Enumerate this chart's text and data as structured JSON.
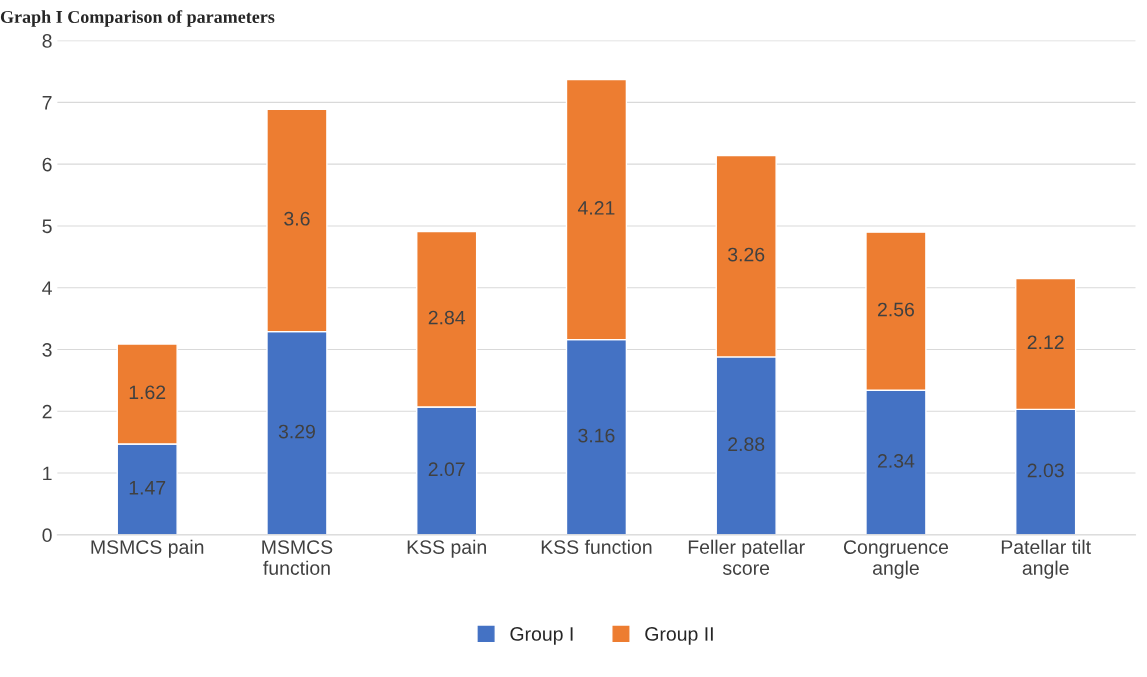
{
  "chart_data": {
    "type": "bar",
    "title": "Graph I Comparison of parameters",
    "categories": [
      "MSMCS pain",
      "MSMCS\nfunction",
      "KSS pain",
      "KSS function",
      "Feller patellar\nscore",
      "Congruence\nangle",
      "Patellar tilt\nangle"
    ],
    "stacked": true,
    "series": [
      {
        "name": "Group I",
        "color": "#4472c4",
        "values": [
          1.47,
          3.29,
          2.07,
          3.16,
          2.88,
          2.34,
          2.03
        ]
      },
      {
        "name": "Group II",
        "color": "#ed7d31",
        "values": [
          1.62,
          3.6,
          2.84,
          4.21,
          3.26,
          2.56,
          2.12
        ]
      }
    ],
    "data_labels": true,
    "ylim": [
      0,
      8
    ],
    "yticks": [
      0,
      1,
      2,
      3,
      4,
      5,
      6,
      7,
      8
    ],
    "grid": "y",
    "legend": "bottom"
  }
}
